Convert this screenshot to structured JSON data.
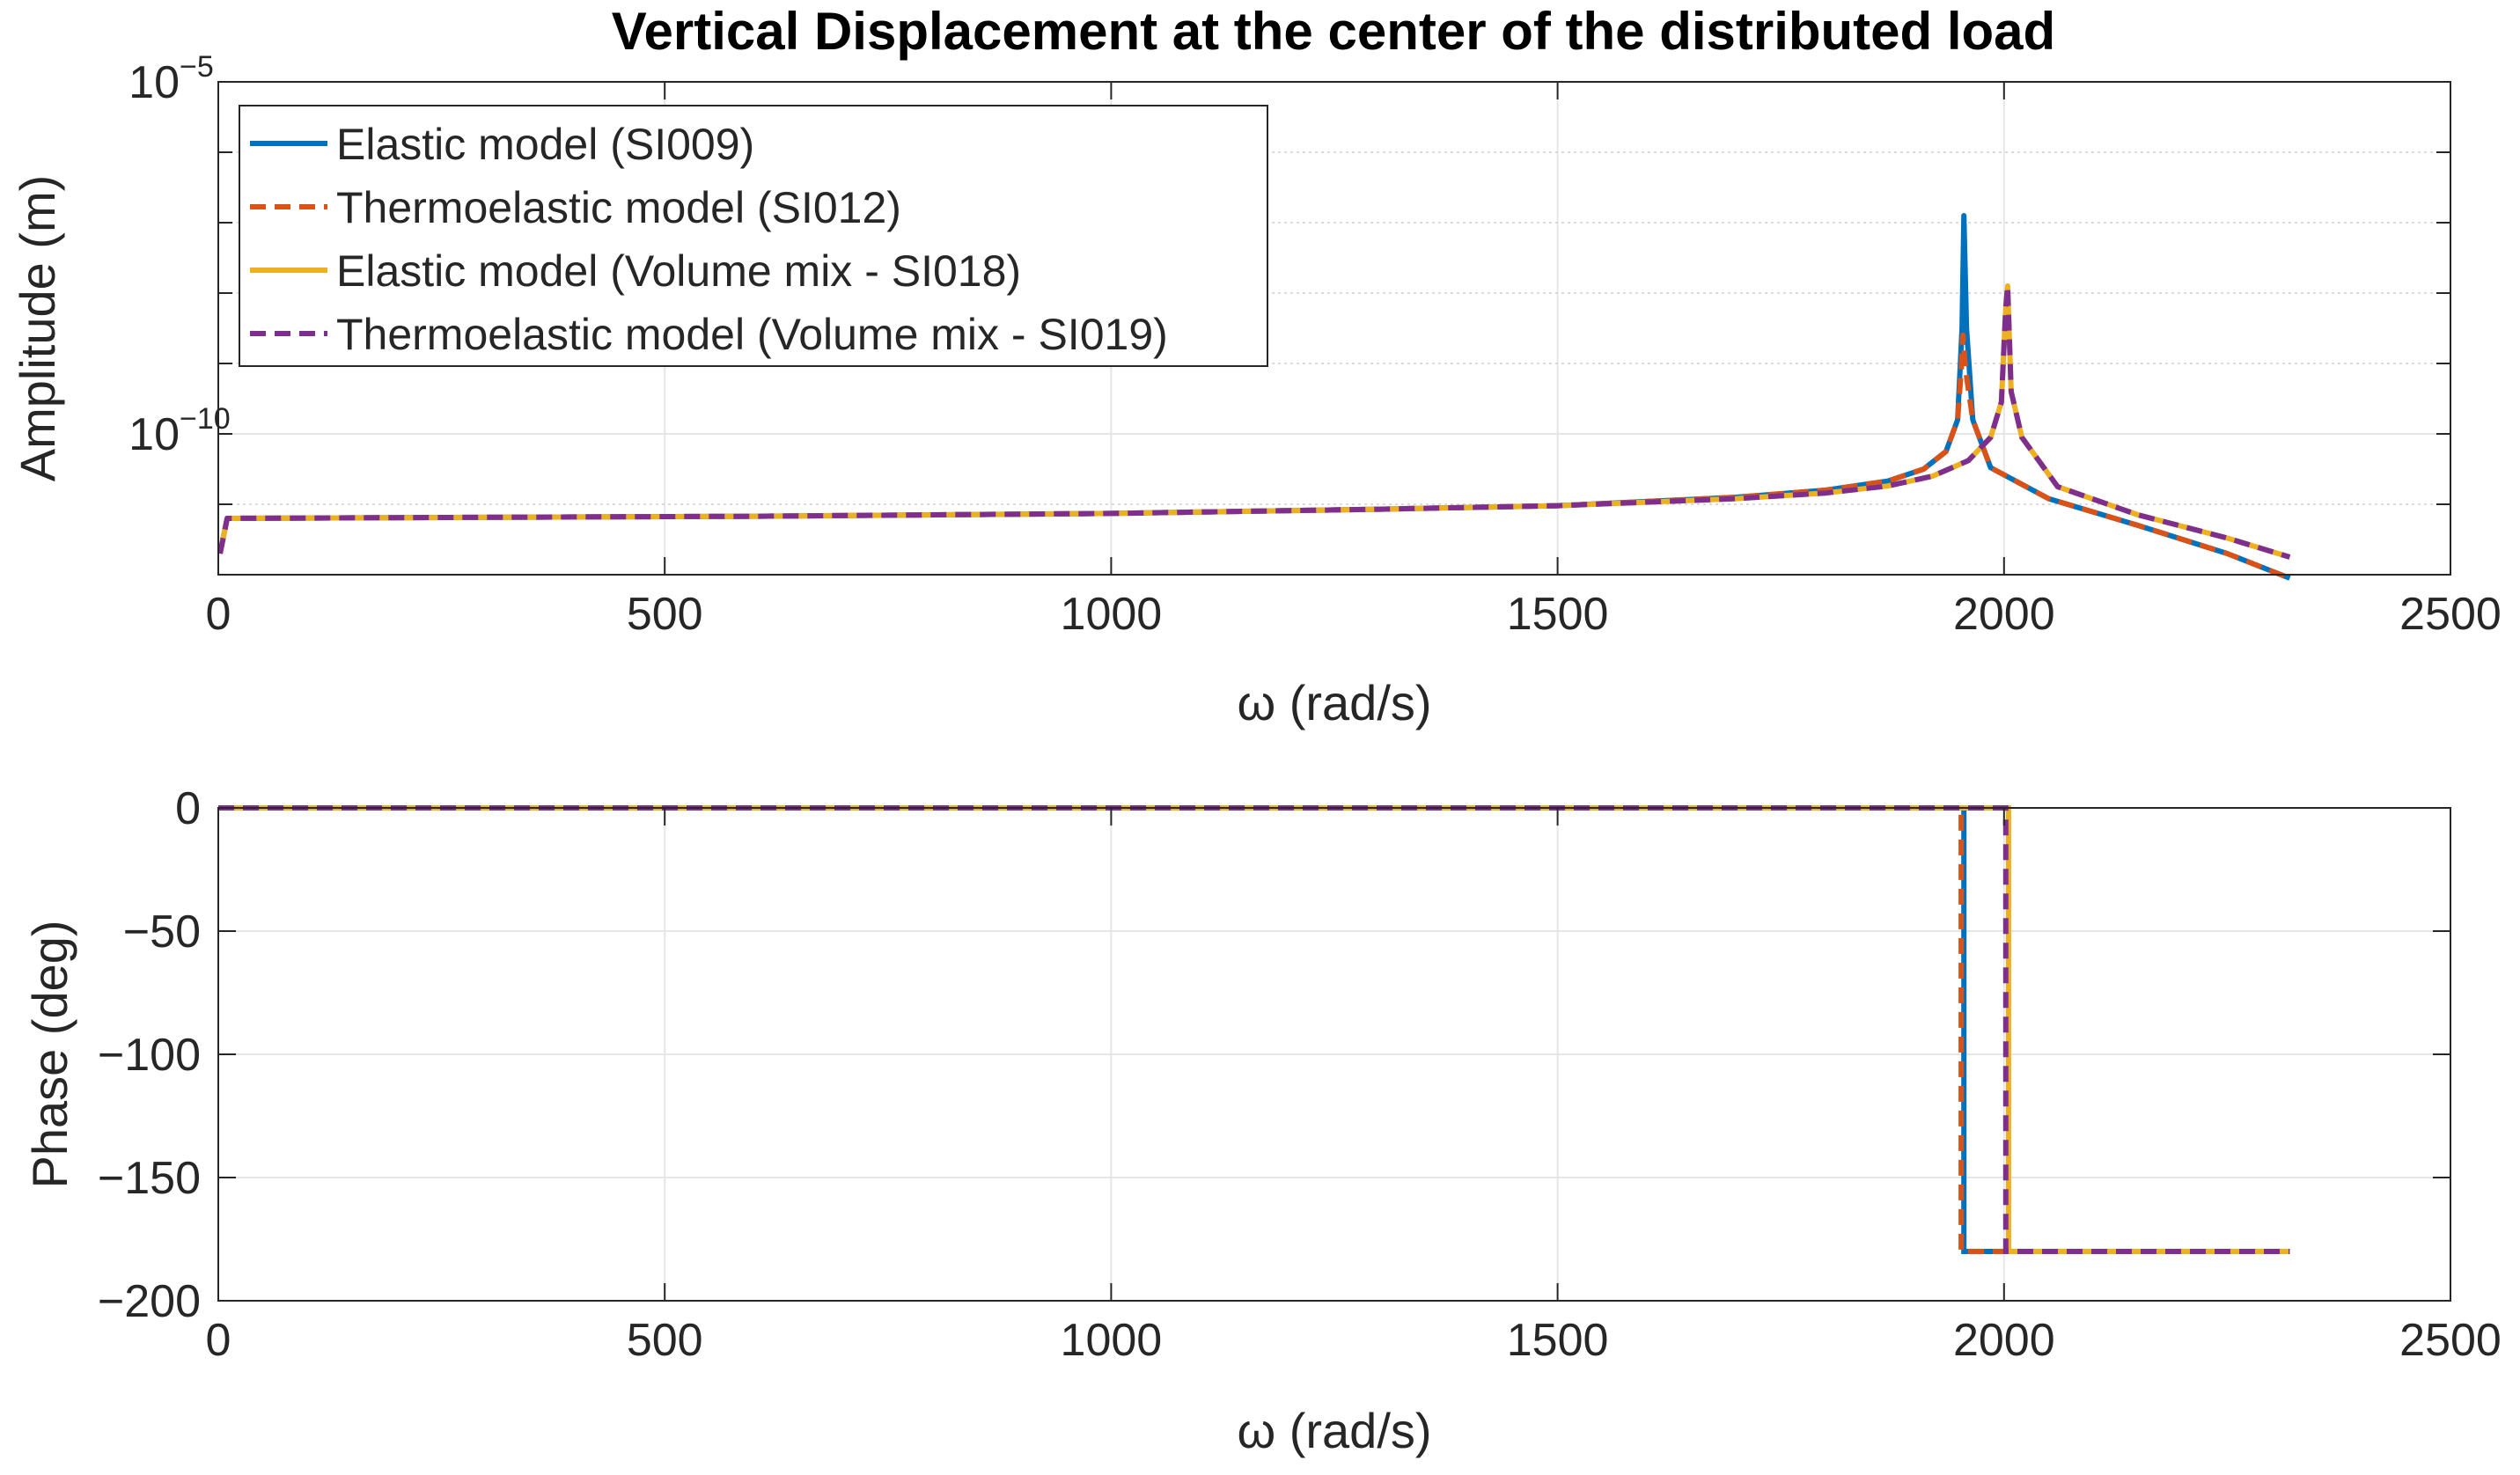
{
  "figure": {
    "title": "Vertical Displacement at the center of the distributed load"
  },
  "chart_data": [
    {
      "type": "line",
      "yscale": "log",
      "xlabel": "ω (rad/s)",
      "ylabel": "Amplitude (m)",
      "xlim": [
        0,
        2500
      ],
      "ylim_log10": [
        -12,
        -5
      ],
      "xticks": [
        0,
        500,
        1000,
        1500,
        2000,
        2500
      ],
      "xtick_labels": [
        "0",
        "500",
        "1000",
        "1500",
        "2000",
        "2500"
      ],
      "ytick_labels": [
        {
          "base": "10",
          "exp": "−10",
          "log10": -10
        },
        {
          "base": "10",
          "exp": "−5",
          "log10": -5
        }
      ],
      "legend_location": "top-left",
      "series": [
        {
          "name": "Elastic model (SI009)",
          "color": "#0072BD",
          "dash": "solid",
          "x": [
            2,
            10,
            200,
            600,
            1000,
            1300,
            1500,
            1700,
            1800,
            1870,
            1910,
            1935,
            1948,
            1953,
            1955,
            1958,
            1965,
            1985,
            2050,
            2150,
            2250,
            2320
          ],
          "y_log10": [
            -11.7,
            -11.2,
            -11.19,
            -11.17,
            -11.13,
            -11.07,
            -11.02,
            -10.9,
            -10.8,
            -10.67,
            -10.5,
            -10.25,
            -9.8,
            -8.5,
            -6.9,
            -8.5,
            -9.8,
            -10.48,
            -10.92,
            -11.3,
            -11.7,
            -12.05
          ]
        },
        {
          "name": "Thermoelastic model (SI012)",
          "color": "#D95319",
          "dash": "dashed",
          "x": [
            2,
            10,
            200,
            600,
            1000,
            1300,
            1500,
            1700,
            1800,
            1870,
            1910,
            1935,
            1948,
            1952,
            1954,
            1957,
            1965,
            1985,
            2050,
            2150,
            2250,
            2320
          ],
          "y_log10": [
            -11.7,
            -11.2,
            -11.19,
            -11.17,
            -11.13,
            -11.07,
            -11.02,
            -10.9,
            -10.8,
            -10.67,
            -10.5,
            -10.25,
            -9.8,
            -9.1,
            -8.6,
            -9.1,
            -9.8,
            -10.48,
            -10.92,
            -11.3,
            -11.7,
            -12.05
          ]
        },
        {
          "name": "Elastic model (Volume mix - SI018)",
          "color": "#EDB120",
          "dash": "solid",
          "x": [
            2,
            10,
            200,
            600,
            1000,
            1300,
            1500,
            1700,
            1800,
            1870,
            1920,
            1960,
            1985,
            1997,
            2002,
            2004,
            2008,
            2020,
            2060,
            2150,
            2250,
            2320
          ],
          "y_log10": [
            -11.7,
            -11.2,
            -11.19,
            -11.17,
            -11.13,
            -11.07,
            -11.02,
            -10.92,
            -10.84,
            -10.74,
            -10.6,
            -10.38,
            -10.05,
            -9.55,
            -8.2,
            -7.9,
            -9.4,
            -10.05,
            -10.75,
            -11.15,
            -11.48,
            -11.75
          ]
        },
        {
          "name": "Thermoelastic model (Volume mix - SI019)",
          "color": "#7E2F8E",
          "dash": "dashed",
          "x": [
            2,
            10,
            200,
            600,
            1000,
            1300,
            1500,
            1700,
            1800,
            1870,
            1920,
            1960,
            1985,
            1997,
            2002,
            2004,
            2008,
            2020,
            2060,
            2150,
            2250,
            2320
          ],
          "y_log10": [
            -11.7,
            -11.2,
            -11.19,
            -11.17,
            -11.13,
            -11.07,
            -11.02,
            -10.92,
            -10.84,
            -10.74,
            -10.6,
            -10.38,
            -10.05,
            -9.55,
            -8.2,
            -7.9,
            -9.4,
            -10.05,
            -10.75,
            -11.15,
            -11.48,
            -11.75
          ]
        }
      ]
    },
    {
      "type": "line",
      "xlabel": "ω (rad/s)",
      "ylabel": "Phase (deg)",
      "xlim": [
        0,
        2500
      ],
      "ylim": [
        -200,
        0
      ],
      "xticks": [
        0,
        500,
        1000,
        1500,
        2000,
        2500
      ],
      "xtick_labels": [
        "0",
        "500",
        "1000",
        "1500",
        "2000",
        "2500"
      ],
      "yticks": [
        -200,
        -150,
        -100,
        -50,
        0
      ],
      "ytick_labels": [
        "−200",
        "−150",
        "−100",
        "−50",
        "0"
      ],
      "series": [
        {
          "name": "Elastic model (SI009)",
          "color": "#0072BD",
          "dash": "solid",
          "x": [
            0,
            1955,
            1955,
            2320
          ],
          "y": [
            0,
            0,
            -180,
            -180
          ]
        },
        {
          "name": "Thermoelastic model (SI012)",
          "color": "#D95319",
          "dash": "dashed",
          "x": [
            0,
            1952,
            1952,
            2320
          ],
          "y": [
            0,
            0,
            -180,
            -180
          ]
        },
        {
          "name": "Elastic model (Volume mix - SI018)",
          "color": "#EDB120",
          "dash": "solid",
          "x": [
            0,
            2005,
            2005,
            2320
          ],
          "y": [
            0,
            0,
            -180,
            -180
          ]
        },
        {
          "name": "Thermoelastic model (Volume mix - SI019)",
          "color": "#7E2F8E",
          "dash": "dashed",
          "x": [
            0,
            2002,
            2002,
            2320
          ],
          "y": [
            0,
            0,
            -180,
            -180
          ]
        }
      ]
    }
  ]
}
